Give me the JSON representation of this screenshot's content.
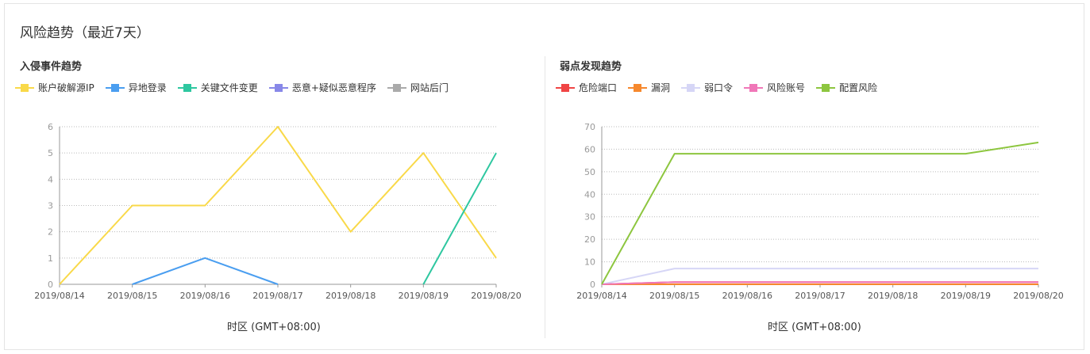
{
  "page": {
    "title": "风险趋势（最近7天）"
  },
  "chart_data": [
    {
      "type": "line",
      "title": "入侵事件趋势",
      "xlabel": "时区 (GMT+08:00)",
      "ylabel": "",
      "ylim": [
        0,
        6
      ],
      "yticks": [
        0,
        1,
        2,
        3,
        4,
        5,
        6
      ],
      "grid": true,
      "legend_position": "top-left",
      "categories": [
        "2019/08/14",
        "2019/08/15",
        "2019/08/16",
        "2019/08/17",
        "2019/08/18",
        "2019/08/19",
        "2019/08/20"
      ],
      "series": [
        {
          "name": "账户破解源IP",
          "color": "#f9d949",
          "values": [
            0,
            3,
            3,
            6,
            2,
            5,
            1
          ]
        },
        {
          "name": "异地登录",
          "color": "#4a9ef0",
          "values": [
            null,
            0,
            1,
            0,
            null,
            null,
            null
          ]
        },
        {
          "name": "关键文件变更",
          "color": "#2ec7a0",
          "values": [
            null,
            null,
            null,
            null,
            null,
            0,
            5
          ]
        },
        {
          "name": "恶意+疑似恶意程序",
          "color": "#8888e8",
          "values": [
            null,
            null,
            null,
            null,
            null,
            null,
            null
          ]
        },
        {
          "name": "网站后门",
          "color": "#aaaaaa",
          "values": [
            null,
            null,
            null,
            null,
            null,
            null,
            null
          ]
        }
      ]
    },
    {
      "type": "line",
      "title": "弱点发现趋势",
      "xlabel": "时区 (GMT+08:00)",
      "ylabel": "",
      "ylim": [
        0,
        70
      ],
      "yticks": [
        0,
        10,
        20,
        30,
        40,
        50,
        60,
        70
      ],
      "grid": true,
      "legend_position": "top-left",
      "categories": [
        "2019/08/14",
        "2019/08/15",
        "2019/08/16",
        "2019/08/17",
        "2019/08/18",
        "2019/08/19",
        "2019/08/20"
      ],
      "series": [
        {
          "name": "危险端口",
          "color": "#f04444",
          "values": [
            0,
            1,
            1,
            1,
            1,
            1,
            1
          ]
        },
        {
          "name": "漏洞",
          "color": "#f6882d",
          "values": [
            0,
            0,
            0,
            0,
            0,
            0,
            0
          ]
        },
        {
          "name": "弱口令",
          "color": "#d6d6f6",
          "values": [
            0,
            7,
            7,
            7,
            7,
            7,
            7
          ]
        },
        {
          "name": "风险账号",
          "color": "#f077b8",
          "values": [
            0,
            1,
            1,
            1,
            1,
            1,
            1
          ]
        },
        {
          "name": "配置风险",
          "color": "#8dc63f",
          "values": [
            0,
            58,
            58,
            58,
            58,
            58,
            63
          ]
        }
      ]
    }
  ]
}
